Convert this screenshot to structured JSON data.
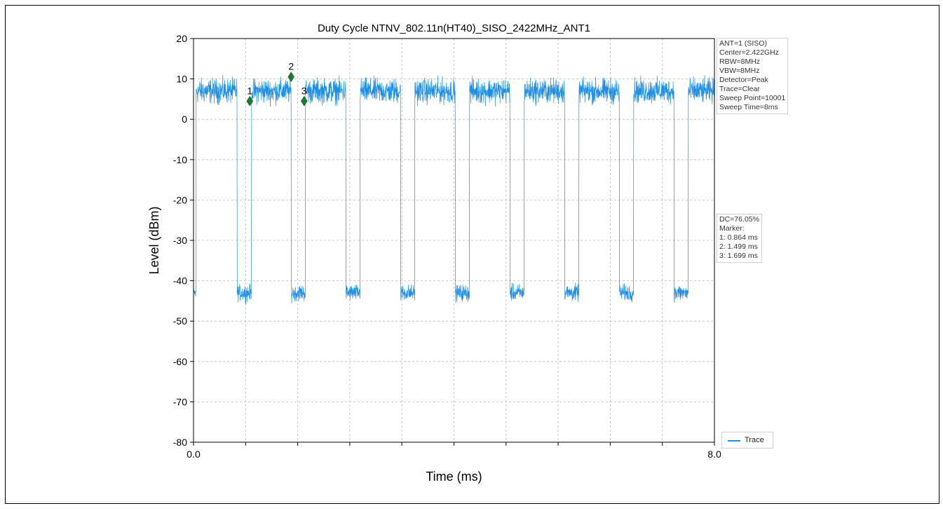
{
  "chart_data": {
    "type": "line",
    "title": "Duty Cycle NTNV_802.11n(HT40)_SISO_2422MHz_ANT1",
    "xlabel": "Time (ms)",
    "ylabel": "Level (dBm)",
    "xlim": [
      0,
      8
    ],
    "ylim": [
      -80,
      20
    ],
    "x_tick_labels": [
      "0.0",
      "8.0"
    ],
    "y_ticks": [
      20,
      10,
      0,
      -10,
      -20,
      -30,
      -40,
      -50,
      -60,
      -70,
      -80
    ],
    "grid": true,
    "legend_position": "bottom-right",
    "series": [
      {
        "name": "Trace",
        "color": "#1f8fe5",
        "high_level_dbm": 7,
        "low_level_dbm": -43,
        "on_intervals_ms": [
          [
            0.04,
            0.67
          ],
          [
            0.89,
            1.5
          ],
          [
            1.72,
            2.34
          ],
          [
            2.56,
            3.18
          ],
          [
            3.4,
            4.02
          ],
          [
            4.24,
            4.86
          ],
          [
            5.08,
            5.7
          ],
          [
            5.92,
            6.54
          ],
          [
            6.76,
            7.38
          ],
          [
            7.6,
            8.0
          ]
        ]
      }
    ],
    "markers": [
      {
        "label": "1",
        "x": 0.864,
        "y": 4.5
      },
      {
        "label": "2",
        "x": 1.499,
        "y": 10.5
      },
      {
        "label": "3",
        "x": 1.699,
        "y": 4.5
      }
    ]
  },
  "info_top": [
    "ANT=1 (SISO)",
    "Center=2.422GHz",
    "RBW=8MHz",
    "VBW=8MHz",
    "Detector=Peak",
    "Trace=Clear",
    "Sweep Point=10001",
    "Sweep Time=8ms"
  ],
  "info_mid": [
    "DC=76.05%",
    "Marker:",
    "1: 0.864 ms",
    "2: 1.499 ms",
    "3: 1.699 ms"
  ],
  "legend_label": "Trace"
}
